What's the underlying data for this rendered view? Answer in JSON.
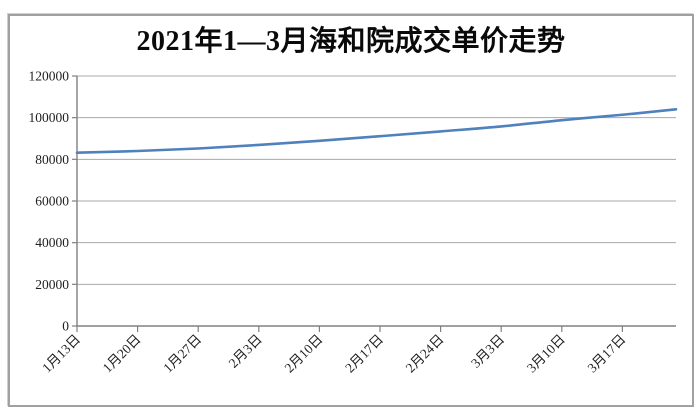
{
  "window": {
    "background": "#ffffff",
    "frame_border_color": "#a0a0a0"
  },
  "chart_data": {
    "type": "line",
    "title": "2021年1—3月海和院成交单价走势",
    "categories": [
      "1月13日",
      "1月20日",
      "1月27日",
      "2月3日",
      "2月10日",
      "2月17日",
      "2月24日",
      "3月3日",
      "3月10日",
      "3月17日",
      ""
    ],
    "values": [
      83200,
      84000,
      85200,
      86900,
      88900,
      91100,
      93400,
      95800,
      98800,
      101400,
      104000
    ],
    "series_name": "成交单价",
    "xlabel": "",
    "ylabel": "",
    "ylim": [
      0,
      120000
    ],
    "ytick_step": 20000,
    "ytick_labels": [
      "0",
      "20000",
      "40000",
      "60000",
      "80000",
      "100000",
      "120000"
    ],
    "grid": true,
    "legend": false,
    "x_labels_rotated_degrees": 45,
    "line_color": "#4f81bd",
    "gridline_color": "#a8a8a8",
    "axis_color": "#808080",
    "text_color": "#1f1f1f"
  }
}
